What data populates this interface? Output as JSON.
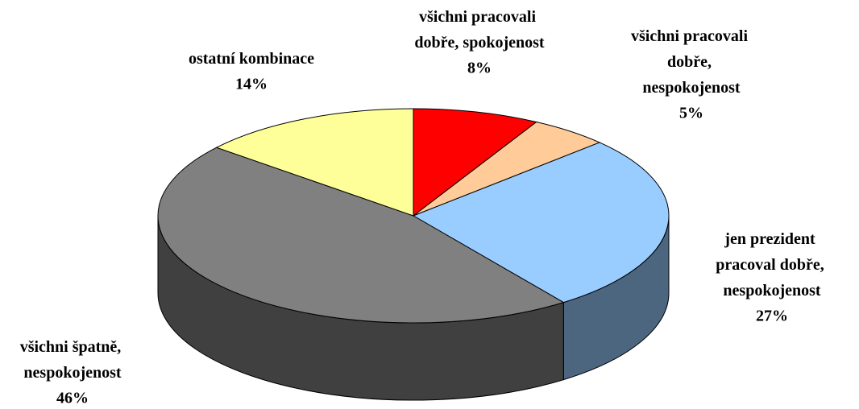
{
  "chart_data": {
    "type": "pie",
    "categories": [
      "všichni pracovali dobře, spokojenost",
      "všichni pracovali dobře, nespokojenost",
      "jen prezident pracoval dobře, nespokojenost",
      "všichni špatně, nespokojenost",
      "ostatní kombinace"
    ],
    "values": [
      8,
      5,
      27,
      46,
      14
    ],
    "value_labels": [
      "8%",
      "5%",
      "27%",
      "46%",
      "14%"
    ],
    "colors": [
      "#ff0000",
      "#ffcc99",
      "#99ccff",
      "#808080",
      "#ffff99"
    ]
  }
}
